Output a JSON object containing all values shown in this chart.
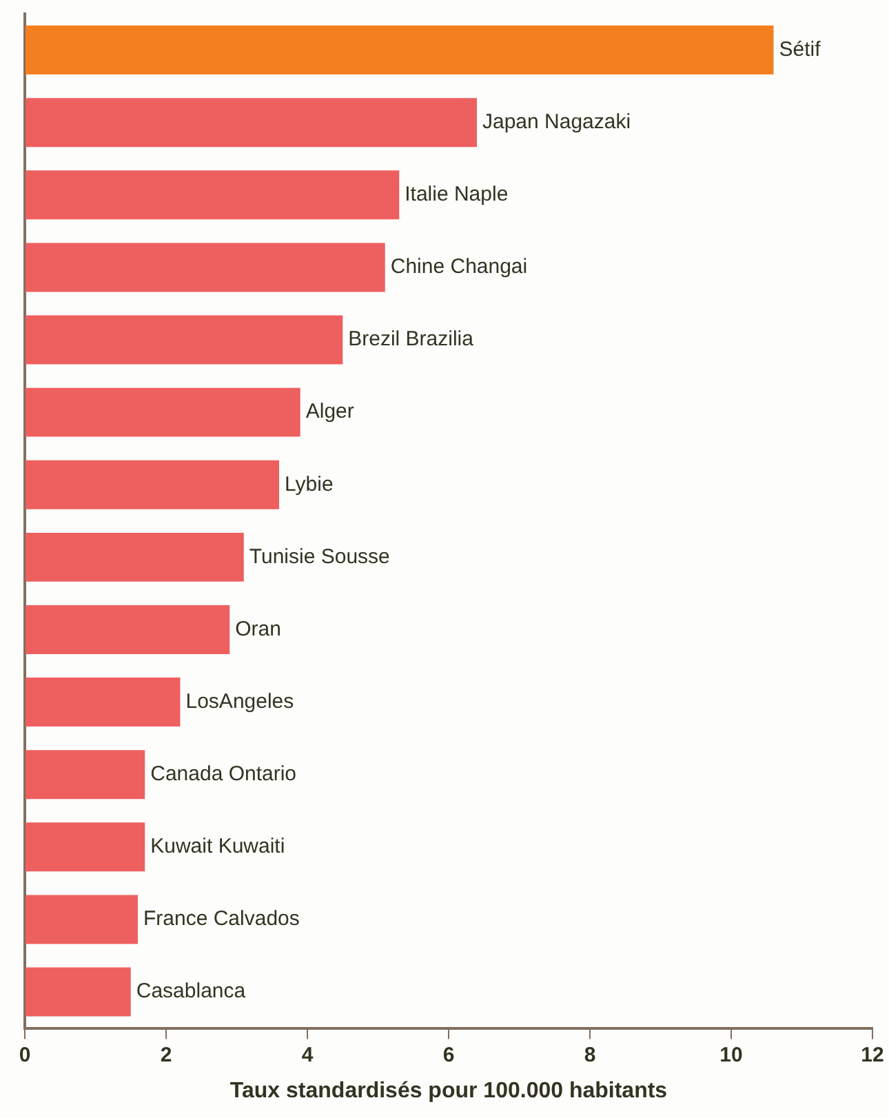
{
  "chart_data": {
    "type": "bar",
    "orientation": "horizontal",
    "xlabel": "Taux standardisés pour 100.000 habitants",
    "categories": [
      "Sétif",
      "Japan Nagazaki",
      "Italie Naple",
      "Chine Changai",
      "Brezil Brazilia",
      "Alger",
      "Lybie",
      "Tunisie Sousse",
      "Oran",
      "LosAngeles",
      "Canada Ontario",
      "Kuwait Kuwaiti",
      "France Calvados",
      "Casablanca"
    ],
    "values": [
      10.6,
      6.4,
      5.3,
      5.1,
      4.5,
      3.9,
      3.6,
      3.1,
      2.9,
      2.2,
      1.7,
      1.7,
      1.6,
      1.5
    ],
    "colors": [
      "#f47f20",
      "#ee5f5f",
      "#ee5f5f",
      "#ee5f5f",
      "#ee5f5f",
      "#ee5f5f",
      "#ee5f5f",
      "#ee5f5f",
      "#ee5f5f",
      "#ee5f5f",
      "#ee5f5f",
      "#ee5f5f",
      "#ee5f5f",
      "#ee5f5f"
    ],
    "xlim": [
      0,
      12
    ],
    "xticks": [
      0,
      2,
      4,
      6,
      8,
      10,
      12
    ],
    "grid": false,
    "legend": false,
    "tick_labels": "x"
  }
}
